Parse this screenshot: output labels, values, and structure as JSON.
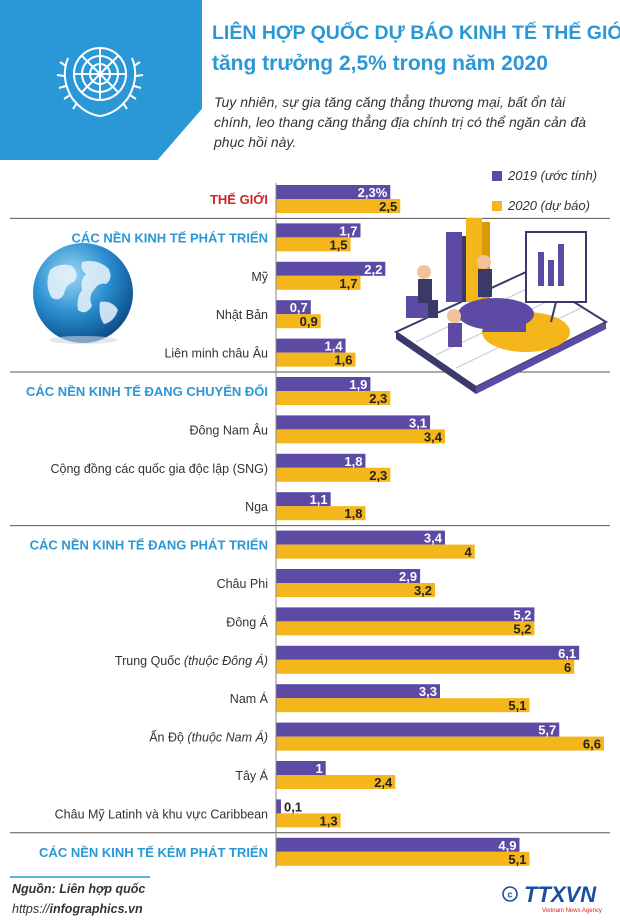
{
  "header": {
    "title_line1": "LIÊN HỢP QUỐC DỰ BÁO KINH TẾ THẾ GIỚI",
    "title_line2": "tăng trưởng 2,5% trong năm 2020",
    "subtitle": "Tuy nhiên, sự gia tăng căng thẳng thương mại, bất ổn tài chính, leo thang căng thẳng địa chính trị có thể ngăn cản đà phục hồi này."
  },
  "colors": {
    "accent_blue": "#2a98d6",
    "series_2019": "#5c4aa5",
    "series_2020": "#f4b61a",
    "world_label": "#d42327",
    "group_label": "#2a98d6",
    "separator": "#555555"
  },
  "chart_data": {
    "type": "bar",
    "orientation": "horizontal",
    "series": [
      {
        "name": "2019 (ước tính)",
        "color": "#5c4aa5"
      },
      {
        "name": "2020 (dự báo)",
        "color": "#f4b61a"
      }
    ],
    "legend_position": "top-right",
    "value_range": [
      0,
      6.6
    ],
    "grid": false,
    "rows": [
      {
        "label": "THẾ GIỚI",
        "kind": "world",
        "values": [
          2.3,
          2.5
        ],
        "labels": [
          "2,3%",
          "2,5"
        ]
      },
      {
        "label": "CÁC NỀN KINH TẾ PHÁT TRIỂN",
        "kind": "group",
        "values": [
          1.7,
          1.5
        ],
        "labels": [
          "1,7",
          "1,5"
        ]
      },
      {
        "label": "Mỹ",
        "kind": "item",
        "values": [
          2.2,
          1.7
        ],
        "labels": [
          "2,2",
          "1,7"
        ]
      },
      {
        "label": "Nhật Bản",
        "kind": "item",
        "values": [
          0.7,
          0.9
        ],
        "labels": [
          "0,7",
          "0,9"
        ]
      },
      {
        "label": "Liên minh châu Âu",
        "kind": "item",
        "values": [
          1.4,
          1.6
        ],
        "labels": [
          "1,4",
          "1,6"
        ]
      },
      {
        "label": "CÁC NỀN KINH TẾ ĐANG CHUYỂN ĐỔI",
        "kind": "group",
        "values": [
          1.9,
          2.3
        ],
        "labels": [
          "1,9",
          "2,3"
        ]
      },
      {
        "label": "Đông Nam Âu",
        "kind": "item",
        "values": [
          3.1,
          3.4
        ],
        "labels": [
          "3,1",
          "3,4"
        ]
      },
      {
        "label": "Cộng đồng các quốc gia độc lập (SNG)",
        "kind": "item",
        "values": [
          1.8,
          2.3
        ],
        "labels": [
          "1,8",
          "2,3"
        ]
      },
      {
        "label": "Nga",
        "kind": "item",
        "values": [
          1.1,
          1.8
        ],
        "labels": [
          "1,1",
          "1,8"
        ]
      },
      {
        "label": "CÁC NỀN KINH TẾ ĐANG PHÁT TRIỂN",
        "kind": "group",
        "values": [
          3.4,
          4
        ],
        "labels": [
          "3,4",
          "4"
        ]
      },
      {
        "label": "Châu Phi",
        "kind": "item",
        "values": [
          2.9,
          3.2
        ],
        "labels": [
          "2,9",
          "3,2"
        ]
      },
      {
        "label": "Đông Á",
        "kind": "item",
        "values": [
          5.2,
          5.2
        ],
        "labels": [
          "5,2",
          "5,2"
        ]
      },
      {
        "label": "Trung Quốc",
        "label_note": "(thuộc Đông Á)",
        "kind": "item",
        "values": [
          6.1,
          6
        ],
        "labels": [
          "6,1",
          "6"
        ]
      },
      {
        "label": "Nam Á",
        "kind": "item",
        "values": [
          3.3,
          5.1
        ],
        "labels": [
          "3,3",
          "5,1"
        ]
      },
      {
        "label": "Ấn Độ",
        "label_note": "(thuộc Nam Á)",
        "kind": "item",
        "values": [
          5.7,
          6.6
        ],
        "labels": [
          "5,7",
          "6,6"
        ]
      },
      {
        "label": "Tây Á",
        "kind": "item",
        "values": [
          1,
          2.4
        ],
        "labels": [
          "1",
          "2,4"
        ]
      },
      {
        "label": "Châu Mỹ Latinh và khu vực Caribbean",
        "kind": "item",
        "values": [
          0.1,
          1.3
        ],
        "labels": [
          "0,1",
          "1,3"
        ]
      },
      {
        "label": "CÁC NỀN KINH TẾ KÉM PHÁT TRIỂN",
        "kind": "group",
        "values": [
          4.9,
          5.1
        ],
        "labels": [
          "4,9",
          "5,1"
        ]
      }
    ]
  },
  "footer": {
    "source": "Nguồn: Liên hợp quốc",
    "url_prefix": "https://",
    "url_main": "infographics.vn",
    "logo_text": "TTXVN",
    "logo_subtext": "Vietnam News Agency"
  },
  "icons": {
    "emblem": "un-emblem-icon",
    "globe": "globe-icon",
    "illustration": "business-chart-illustration",
    "logo": "ttxvn-logo"
  }
}
